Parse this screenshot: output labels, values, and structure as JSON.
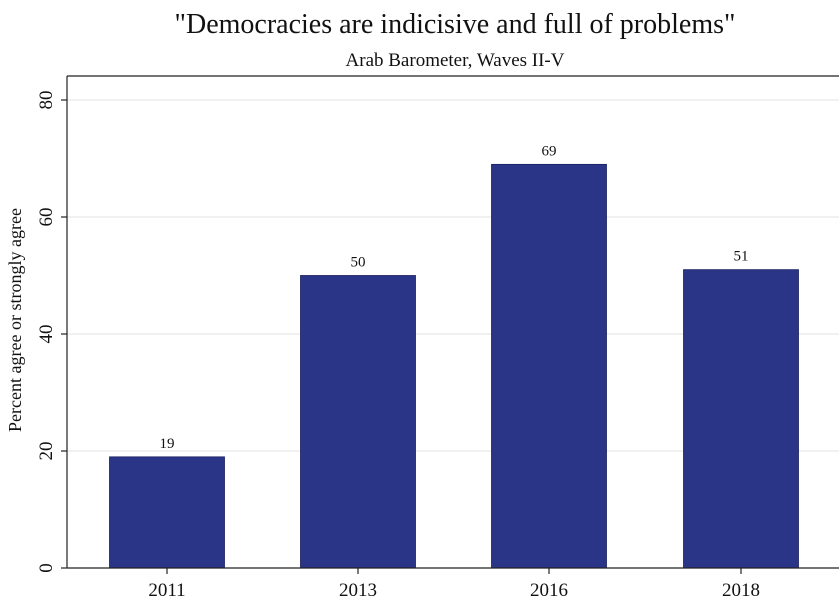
{
  "chart_data": {
    "type": "bar",
    "title": "\"Democracies are indicisive and full of problems\"",
    "subtitle": "Arab Barometer, Waves II-V",
    "xlabel": "",
    "ylabel": "Percent agree or strongly agree",
    "categories": [
      "2011",
      "2013",
      "2016",
      "2018"
    ],
    "values": [
      19,
      50,
      69,
      51
    ],
    "data_labels": [
      "19",
      "50",
      "69",
      "51"
    ],
    "ylim": [
      0,
      80
    ],
    "yticks": [
      0,
      20,
      40,
      60,
      80
    ],
    "ytick_labels": [
      "0",
      "20",
      "40",
      "60",
      "80"
    ],
    "grid": true,
    "legend": "none",
    "colors": {
      "bar": "#2b3587",
      "grid": "#e3e3e3",
      "axis": "#222222"
    }
  }
}
